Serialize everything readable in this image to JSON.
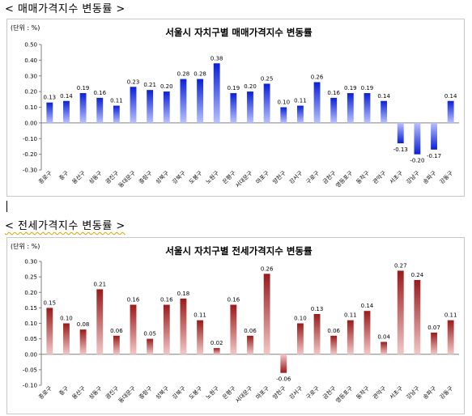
{
  "sections": [
    {
      "title": "< 매매가격지수  변동률 >"
    },
    {
      "title": "< 전세가격지수  변동률 >"
    }
  ],
  "chart_data": [
    {
      "type": "bar",
      "title": "서울시 자치구별 매매가격지수 변동률",
      "unit_label": "(단위 : %)",
      "categories": [
        "종로구",
        "중구",
        "용산구",
        "성동구",
        "광진구",
        "동대문구",
        "중랑구",
        "성북구",
        "강북구",
        "도봉구",
        "노원구",
        "은평구",
        "서대문구",
        "마포구",
        "양천구",
        "강서구",
        "구로구",
        "금천구",
        "영등포구",
        "동작구",
        "관악구",
        "서초구",
        "강남구",
        "송파구",
        "강동구"
      ],
      "values": [
        0.13,
        0.14,
        0.19,
        0.16,
        0.11,
        0.23,
        0.21,
        0.2,
        0.28,
        0.28,
        0.38,
        0.19,
        0.2,
        0.25,
        0.1,
        0.11,
        0.26,
        0.16,
        0.19,
        0.19,
        0.14,
        -0.13,
        -0.2,
        -0.17,
        0.14
      ],
      "value_labels": [
        "0.13",
        "0.14",
        "0.19",
        "0.16",
        "0.11",
        "0.23",
        "0.21",
        "0.20",
        "0.28",
        "0.28",
        "0.38",
        "0.19",
        "0.20",
        "0.25",
        "0.10",
        "0.11",
        "0.26",
        "0.16",
        "0.19",
        "0.19",
        "0.14",
        "-0.13",
        "-0.20",
        "-0.17",
        "0.14"
      ],
      "ylim": [
        -0.3,
        0.5
      ],
      "yticks": [
        "0.50",
        "0.40",
        "0.30",
        "0.20",
        "0.10",
        "0.00",
        "-0.10",
        "-0.20",
        "-0.30"
      ],
      "ytick_values": [
        0.5,
        0.4,
        0.3,
        0.2,
        0.1,
        0.0,
        -0.1,
        -0.2,
        -0.3
      ],
      "grid": false,
      "colors": {
        "top": "#0a1fd8",
        "bottom": "#b8c2ff"
      }
    },
    {
      "type": "bar",
      "title": "서울시 자치구별 전세가격지수 변동률",
      "unit_label": "(단위 : %)",
      "categories": [
        "종로구",
        "중구",
        "용산구",
        "성동구",
        "광진구",
        "동대문구",
        "중랑구",
        "성북구",
        "강북구",
        "도봉구",
        "노원구",
        "은평구",
        "서대문구",
        "마포구",
        "양천구",
        "강서구",
        "구로구",
        "금천구",
        "영등포구",
        "동작구",
        "관악구",
        "서초구",
        "강남구",
        "송파구",
        "강동구"
      ],
      "values": [
        0.15,
        0.1,
        0.08,
        0.21,
        0.06,
        0.16,
        0.05,
        0.16,
        0.18,
        0.11,
        0.02,
        0.16,
        0.06,
        0.26,
        -0.06,
        0.1,
        0.13,
        0.06,
        0.11,
        0.14,
        0.04,
        0.27,
        0.24,
        0.07,
        0.11
      ],
      "value_labels": [
        "0.15",
        "0.10",
        "0.08",
        "0.21",
        "0.06",
        "0.16",
        "0.05",
        "0.16",
        "0.18",
        "0.11",
        "0.02",
        "0.16",
        "0.06",
        "0.26",
        "-0.06",
        "0.10",
        "0.13",
        "0.06",
        "0.11",
        "0.14",
        "0.04",
        "0.27",
        "0.24",
        "0.07",
        "0.11"
      ],
      "ylim": [
        -0.1,
        0.3
      ],
      "yticks": [
        "0.30",
        "0.25",
        "0.20",
        "0.15",
        "0.10",
        "0.05",
        "0.00",
        "-0.05",
        "-0.10"
      ],
      "ytick_values": [
        0.3,
        0.25,
        0.2,
        0.15,
        0.1,
        0.05,
        0.0,
        -0.05,
        -0.1
      ],
      "grid": false,
      "colors": {
        "top": "#9a1a1a",
        "bottom": "#f2c8c8"
      }
    }
  ]
}
